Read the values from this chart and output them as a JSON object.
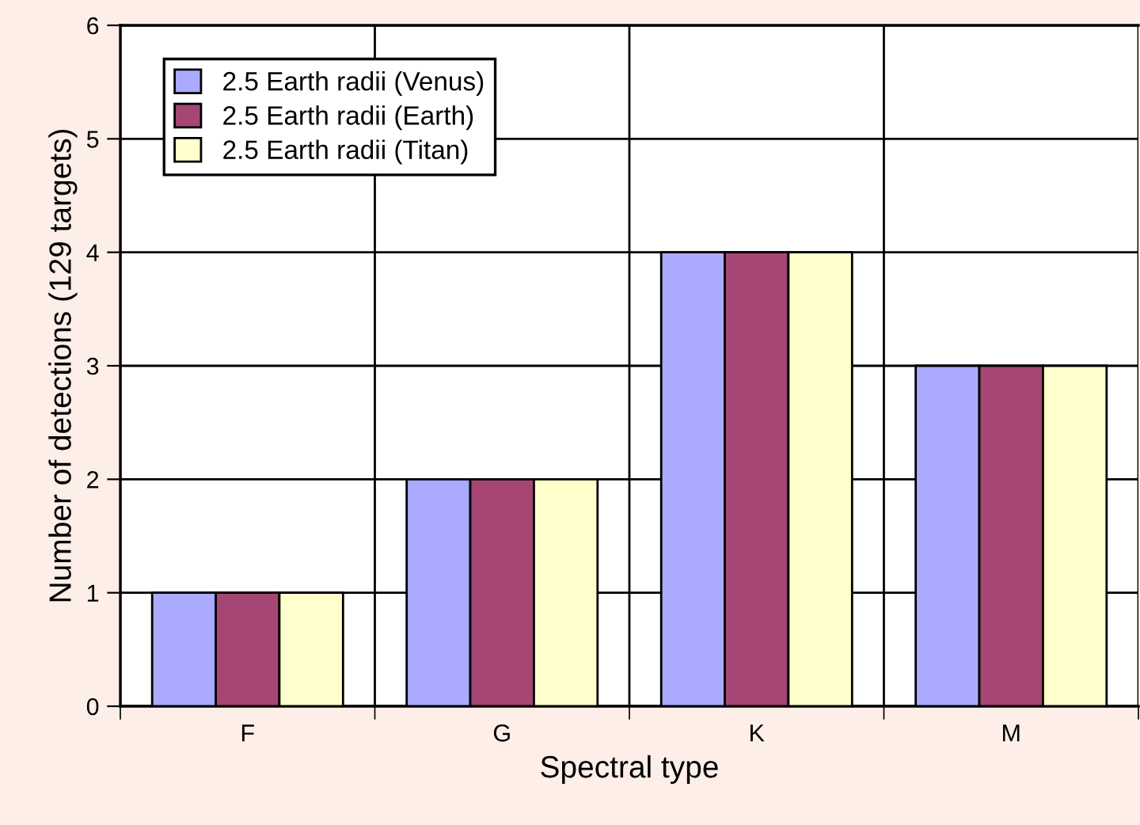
{
  "chart_data": {
    "type": "bar",
    "xlabel": "Spectral type",
    "ylabel": "Number of detections (129 targets)",
    "categories": [
      "F",
      "G",
      "K",
      "M"
    ],
    "series": [
      {
        "name": "2.5 Earth radii (Venus)",
        "color": "#aaaaff",
        "values": [
          1,
          2,
          4,
          3
        ]
      },
      {
        "name": "2.5 Earth radii (Earth)",
        "color": "#a64674",
        "values": [
          1,
          2,
          4,
          3
        ]
      },
      {
        "name": "2.5 Earth radii (Titan)",
        "color": "#ffffcc",
        "values": [
          1,
          2,
          4,
          3
        ]
      }
    ],
    "ylim": [
      0,
      6
    ],
    "yticks": [
      0,
      1,
      2,
      3,
      4,
      5,
      6
    ],
    "grid": true,
    "legend": "top left"
  }
}
